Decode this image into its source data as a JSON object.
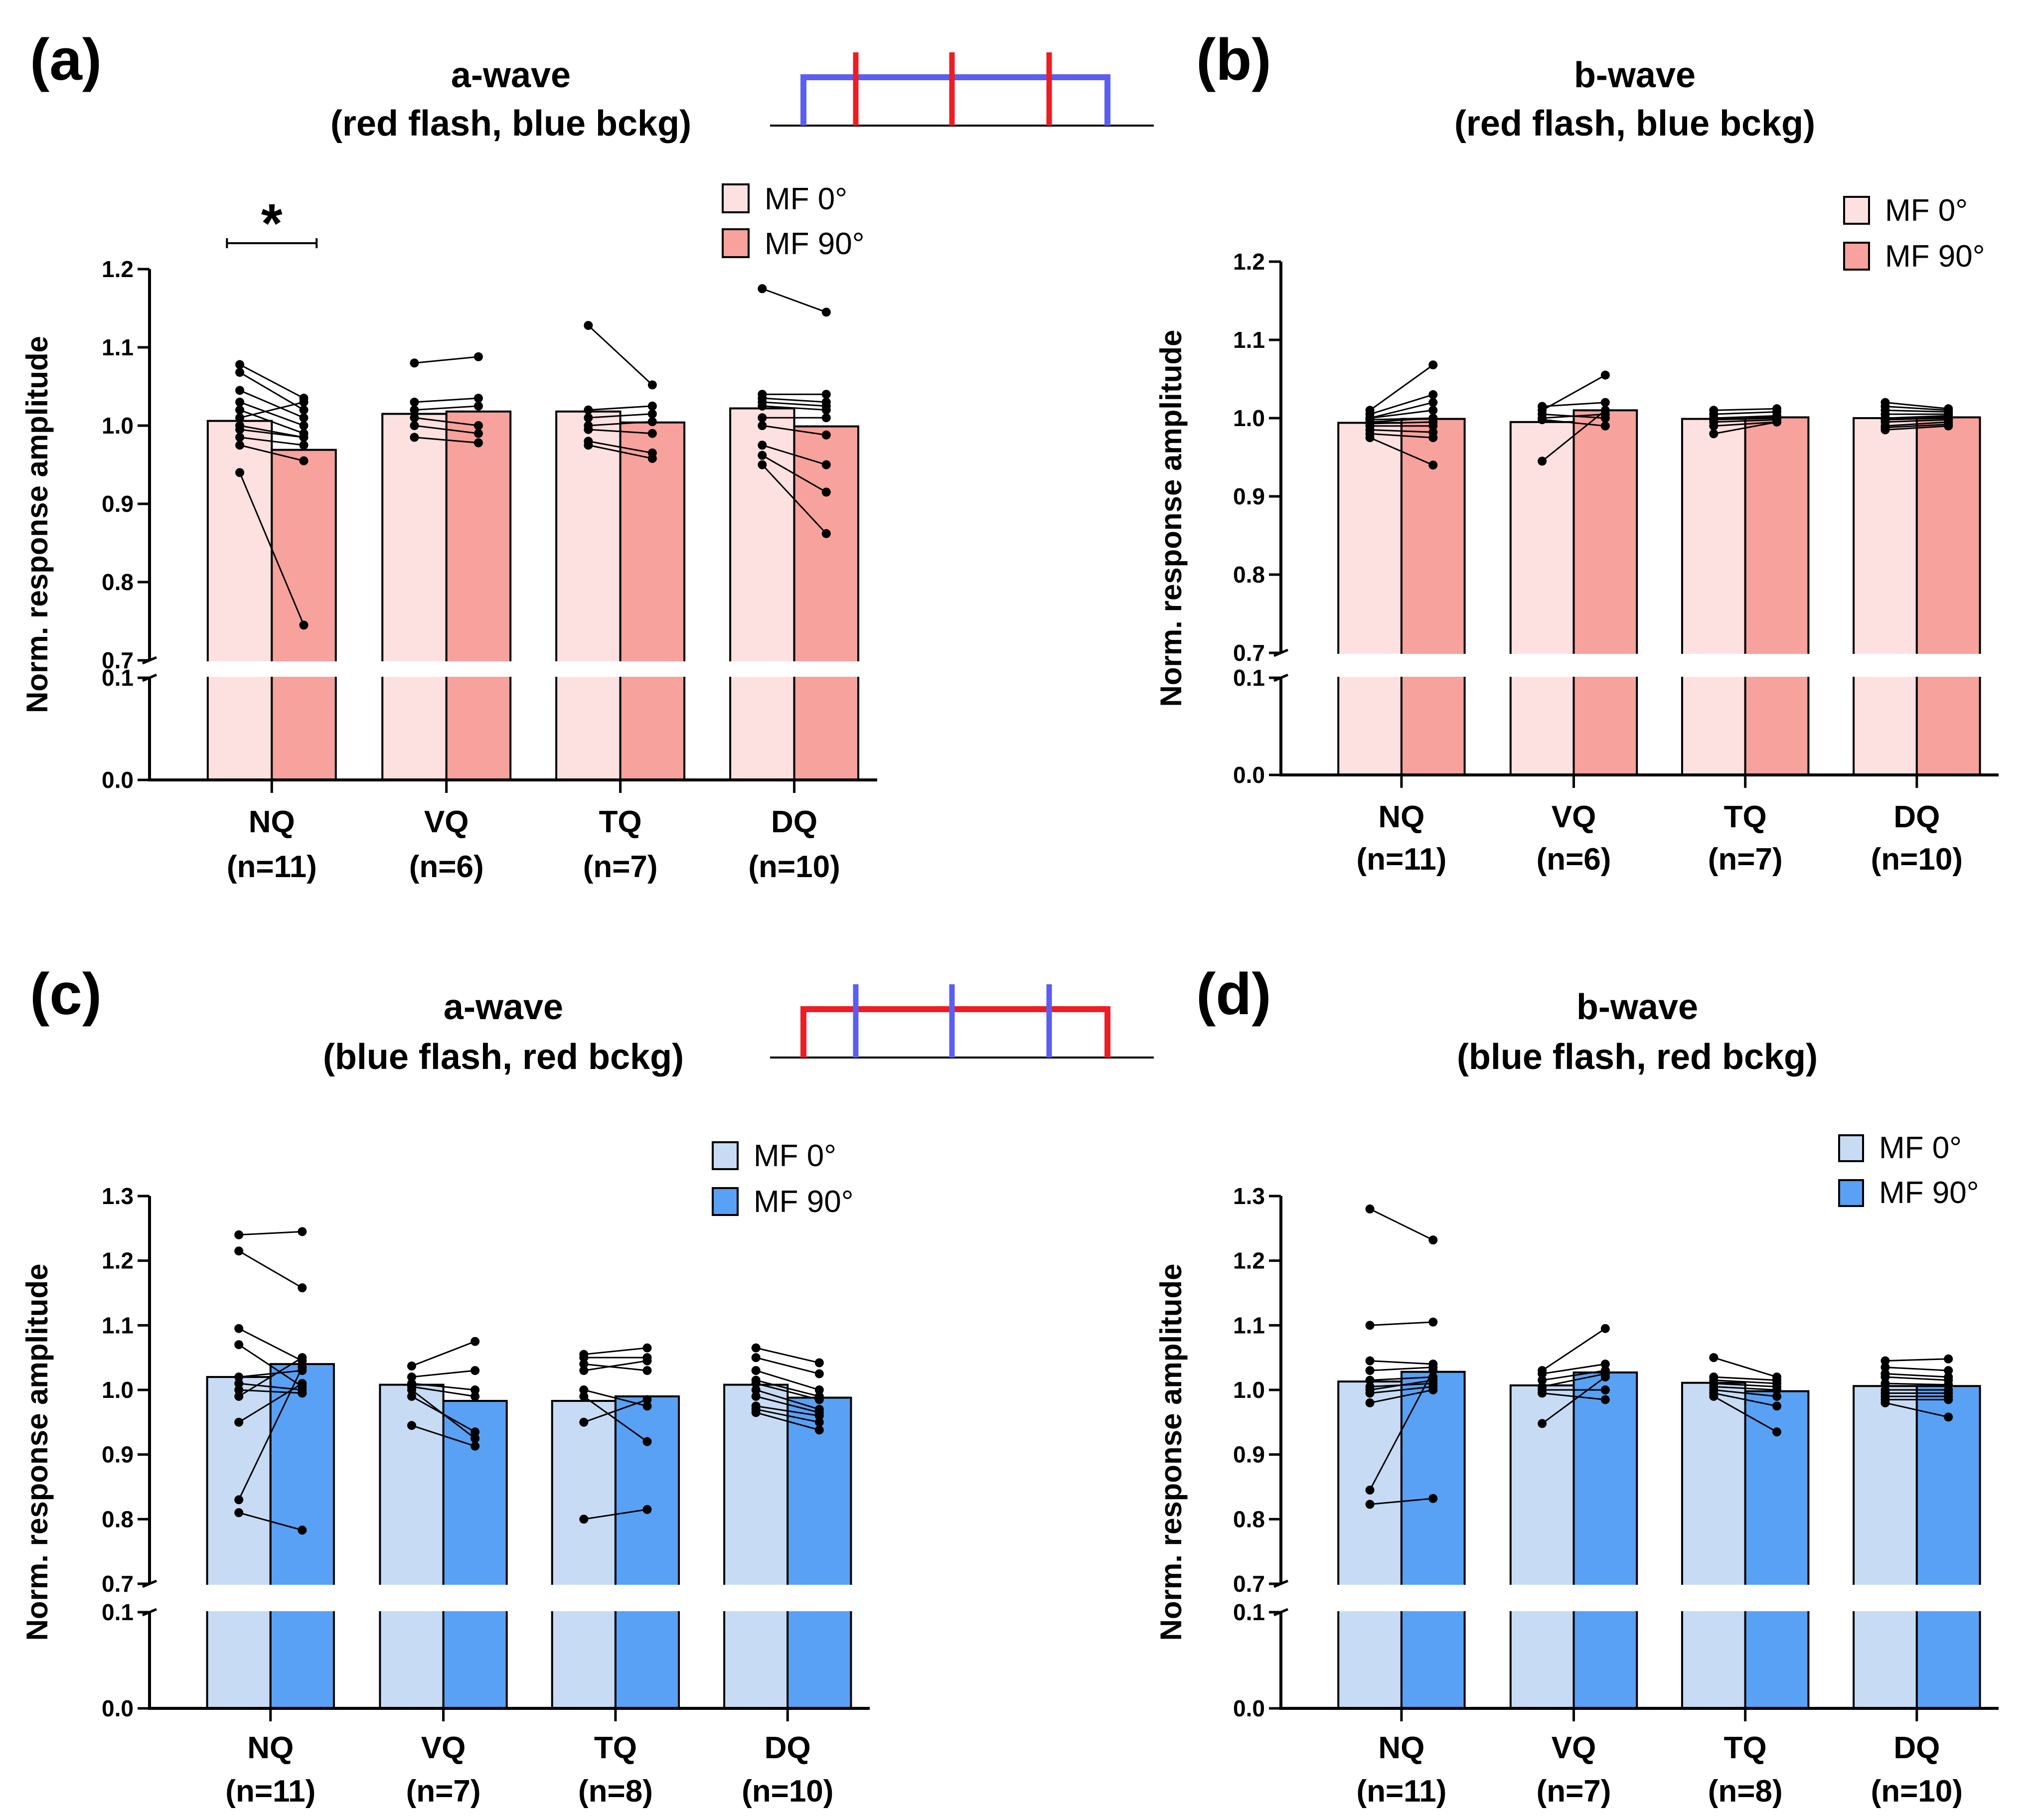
{
  "colors": {
    "red_light": "#fde1e0",
    "red_dark": "#f7a29c",
    "blue_light": "#c7dcf4",
    "blue_dark": "#59a1f5",
    "stim_red": "#ee1d23",
    "stim_blue": "#5b5ef2",
    "axis": "#000000"
  },
  "chart_data": [
    {
      "panel": "(a)",
      "type": "bar",
      "title_line1": "a-wave",
      "title_line2": "(red flash, blue bckg)",
      "ylabel": "Norm. response amplitude",
      "scheme": "red",
      "stimulus": "red flashes on blue background",
      "ylim_upper": [
        0.7,
        1.2
      ],
      "ylim_lower": [
        0.0,
        0.1
      ],
      "yticks_upper": [
        "0.7",
        "0.8",
        "0.9",
        "1.0",
        "1.1",
        "1.2"
      ],
      "yticks_lower": [
        "0.0",
        "0.1"
      ],
      "categories": [
        "NQ",
        "VQ",
        "TQ",
        "DQ"
      ],
      "n_labels": [
        "(n=11)",
        "(n=6)",
        "(n=7)",
        "(n=10)"
      ],
      "legend": [
        "MF 0°",
        "MF 90°"
      ],
      "series": [
        {
          "name": "MF 0°",
          "values": [
            1.006,
            1.015,
            1.018,
            1.022
          ]
        },
        {
          "name": "MF 90°",
          "values": [
            0.969,
            1.018,
            1.004,
            0.999
          ]
        }
      ],
      "pairs": [
        [
          [
            1.078,
            1.035
          ],
          [
            1.068,
            1.02
          ],
          [
            1.045,
            1.01
          ],
          [
            1.03,
            1.0
          ],
          [
            1.02,
            0.99
          ],
          [
            1.01,
            1.03
          ],
          [
            1.0,
            0.985
          ],
          [
            0.995,
            0.985
          ],
          [
            0.985,
            0.975
          ],
          [
            0.975,
            0.955
          ],
          [
            0.94,
            0.745
          ]
        ],
        [
          [
            1.08,
            1.088
          ],
          [
            1.03,
            1.035
          ],
          [
            1.02,
            1.025
          ],
          [
            1.01,
            1.0
          ],
          [
            1.0,
            0.99
          ],
          [
            0.985,
            0.978
          ]
        ],
        [
          [
            1.128,
            1.052
          ],
          [
            1.02,
            1.025
          ],
          [
            1.01,
            1.015
          ],
          [
            1.0,
            1.005
          ],
          [
            0.995,
            0.99
          ],
          [
            0.98,
            0.965
          ],
          [
            0.975,
            0.958
          ]
        ],
        [
          [
            1.175,
            1.145
          ],
          [
            1.04,
            1.04
          ],
          [
            1.035,
            1.03
          ],
          [
            1.03,
            1.025
          ],
          [
            1.025,
            1.02
          ],
          [
            1.01,
            1.01
          ],
          [
            1.0,
            0.988
          ],
          [
            0.975,
            0.95
          ],
          [
            0.962,
            0.915
          ],
          [
            0.95,
            0.862
          ]
        ]
      ],
      "significance": {
        "label": "*",
        "category": "NQ"
      }
    },
    {
      "panel": "(b)",
      "type": "bar",
      "title_line1": "b-wave",
      "title_line2": "(red flash, blue bckg)",
      "ylabel": "Norm. response amplitude",
      "scheme": "red",
      "ylim_upper": [
        0.7,
        1.2
      ],
      "ylim_lower": [
        0.0,
        0.1
      ],
      "yticks_upper": [
        "0.7",
        "0.8",
        "0.9",
        "1.0",
        "1.1",
        "1.2"
      ],
      "yticks_lower": [
        "0.0",
        "0.1"
      ],
      "categories": [
        "NQ",
        "VQ",
        "TQ",
        "DQ"
      ],
      "n_labels": [
        "(n=11)",
        "(n=6)",
        "(n=7)",
        "(n=10)"
      ],
      "legend": [
        "MF 0°",
        "MF 90°"
      ],
      "series": [
        {
          "name": "MF 0°",
          "values": [
            0.994,
            0.995,
            0.999,
            1.0
          ]
        },
        {
          "name": "MF 90°",
          "values": [
            0.999,
            1.01,
            1.001,
            1.001
          ]
        }
      ],
      "pairs": [
        [
          [
            1.01,
            1.068
          ],
          [
            1.005,
            1.03
          ],
          [
            1.0,
            1.02
          ],
          [
            1.0,
            1.01
          ],
          [
            0.998,
            1.0
          ],
          [
            0.995,
            1.0
          ],
          [
            0.993,
            0.995
          ],
          [
            0.99,
            0.99
          ],
          [
            0.985,
            0.982
          ],
          [
            0.98,
            0.975
          ],
          [
            0.975,
            0.94
          ]
        ],
        [
          [
            1.015,
            1.02
          ],
          [
            1.01,
            1.055
          ],
          [
            1.005,
            1.0
          ],
          [
            1.0,
            1.005
          ],
          [
            0.998,
            0.99
          ],
          [
            0.945,
            1.01
          ]
        ],
        [
          [
            1.01,
            1.012
          ],
          [
            1.005,
            1.008
          ],
          [
            1.0,
            1.003
          ],
          [
            0.998,
            1.0
          ],
          [
            0.995,
            0.998
          ],
          [
            0.99,
            0.995
          ],
          [
            0.98,
            0.995
          ]
        ],
        [
          [
            1.02,
            1.012
          ],
          [
            1.015,
            1.01
          ],
          [
            1.01,
            1.008
          ],
          [
            1.005,
            1.005
          ],
          [
            1.0,
            1.003
          ],
          [
            0.998,
            1.0
          ],
          [
            0.995,
            0.998
          ],
          [
            0.99,
            0.995
          ],
          [
            0.988,
            0.992
          ],
          [
            0.985,
            0.99
          ]
        ]
      ]
    },
    {
      "panel": "(c)",
      "type": "bar",
      "title_line1": "a-wave",
      "title_line2": "(blue flash, red bckg)",
      "ylabel": "Norm. response amplitude",
      "scheme": "blue",
      "stimulus": "blue flashes on red background",
      "ylim_upper": [
        0.7,
        1.3
      ],
      "ylim_lower": [
        0.0,
        0.1
      ],
      "yticks_upper": [
        "0.7",
        "0.8",
        "0.9",
        "1.0",
        "1.1",
        "1.2",
        "1.3"
      ],
      "yticks_lower": [
        "0.0",
        "0.1"
      ],
      "categories": [
        "NQ",
        "VQ",
        "TQ",
        "DQ"
      ],
      "n_labels": [
        "(n=11)",
        "(n=7)",
        "(n=8)",
        "(n=10)"
      ],
      "legend": [
        "MF 0°",
        "MF 90°"
      ],
      "series": [
        {
          "name": "MF 0°",
          "values": [
            1.02,
            1.008,
            0.983,
            1.008
          ]
        },
        {
          "name": "MF 90°",
          "values": [
            1.04,
            0.983,
            0.99,
            0.988
          ]
        }
      ],
      "pairs": [
        [
          [
            1.24,
            1.245
          ],
          [
            1.215,
            1.158
          ],
          [
            1.095,
            1.045
          ],
          [
            1.07,
            1.005
          ],
          [
            1.02,
            1.03
          ],
          [
            1.01,
            1.0
          ],
          [
            1.0,
            0.995
          ],
          [
            0.99,
            1.05
          ],
          [
            0.95,
            1.01
          ],
          [
            0.83,
            1.035
          ],
          [
            0.81,
            0.783
          ]
        ],
        [
          [
            1.037,
            1.075
          ],
          [
            1.02,
            1.03
          ],
          [
            1.01,
            1.0
          ],
          [
            1.005,
            0.99
          ],
          [
            0.99,
            0.935
          ],
          [
            0.945,
            0.913
          ],
          [
            1.0,
            0.925
          ]
        ],
        [
          [
            1.055,
            1.065
          ],
          [
            1.05,
            1.05
          ],
          [
            1.04,
            1.03
          ],
          [
            1.03,
            1.045
          ],
          [
            1.0,
            0.975
          ],
          [
            0.99,
            0.92
          ],
          [
            0.95,
            0.985
          ],
          [
            0.8,
            0.815
          ]
        ],
        [
          [
            1.065,
            1.042
          ],
          [
            1.05,
            1.025
          ],
          [
            1.03,
            1.0
          ],
          [
            1.015,
            0.99
          ],
          [
            1.01,
            0.985
          ],
          [
            1.0,
            0.97
          ],
          [
            0.99,
            0.965
          ],
          [
            0.975,
            0.96
          ],
          [
            0.97,
            0.95
          ],
          [
            0.965,
            0.938
          ]
        ]
      ]
    },
    {
      "panel": "(d)",
      "type": "bar",
      "title_line1": "b-wave",
      "title_line2": "(blue flash, red bckg)",
      "ylabel": "Norm. response amplitude",
      "scheme": "blue",
      "ylim_upper": [
        0.7,
        1.3
      ],
      "ylim_lower": [
        0.0,
        0.1
      ],
      "yticks_upper": [
        "0.7",
        "0.8",
        "0.9",
        "1.0",
        "1.1",
        "1.2",
        "1.3"
      ],
      "yticks_lower": [
        "0.0",
        "0.1"
      ],
      "categories": [
        "NQ",
        "VQ",
        "TQ",
        "DQ"
      ],
      "n_labels": [
        "(n=11)",
        "(n=7)",
        "(n=8)",
        "(n=10)"
      ],
      "legend": [
        "MF 0°",
        "MF 90°"
      ],
      "series": [
        {
          "name": "MF 0°",
          "values": [
            1.013,
            1.007,
            1.011,
            1.006
          ]
        },
        {
          "name": "MF 90°",
          "values": [
            1.028,
            1.027,
            0.998,
            1.006
          ]
        }
      ],
      "pairs": [
        [
          [
            1.28,
            1.232
          ],
          [
            1.1,
            1.105
          ],
          [
            1.045,
            1.04
          ],
          [
            1.03,
            1.035
          ],
          [
            1.015,
            1.02
          ],
          [
            1.005,
            1.01
          ],
          [
            0.995,
            1.005
          ],
          [
            0.98,
            1.0
          ],
          [
            0.845,
            1.03
          ],
          [
            0.823,
            0.832
          ],
          [
            1.0,
            1.015
          ]
        ],
        [
          [
            1.03,
            1.095
          ],
          [
            1.025,
            1.04
          ],
          [
            1.015,
            1.03
          ],
          [
            1.005,
            1.025
          ],
          [
            1.0,
            1.0
          ],
          [
            0.995,
            0.985
          ],
          [
            0.948,
            1.02
          ]
        ],
        [
          [
            1.05,
            1.02
          ],
          [
            1.02,
            1.015
          ],
          [
            1.015,
            1.01
          ],
          [
            1.01,
            1.005
          ],
          [
            1.005,
            1.0
          ],
          [
            1.0,
            0.99
          ],
          [
            0.995,
            0.975
          ],
          [
            0.99,
            0.935
          ]
        ],
        [
          [
            1.045,
            1.048
          ],
          [
            1.035,
            1.03
          ],
          [
            1.025,
            1.02
          ],
          [
            1.02,
            1.015
          ],
          [
            1.01,
            1.008
          ],
          [
            1.0,
            1.0
          ],
          [
            0.995,
            0.995
          ],
          [
            0.99,
            0.99
          ],
          [
            0.985,
            0.985
          ],
          [
            0.98,
            0.958
          ]
        ]
      ]
    }
  ]
}
